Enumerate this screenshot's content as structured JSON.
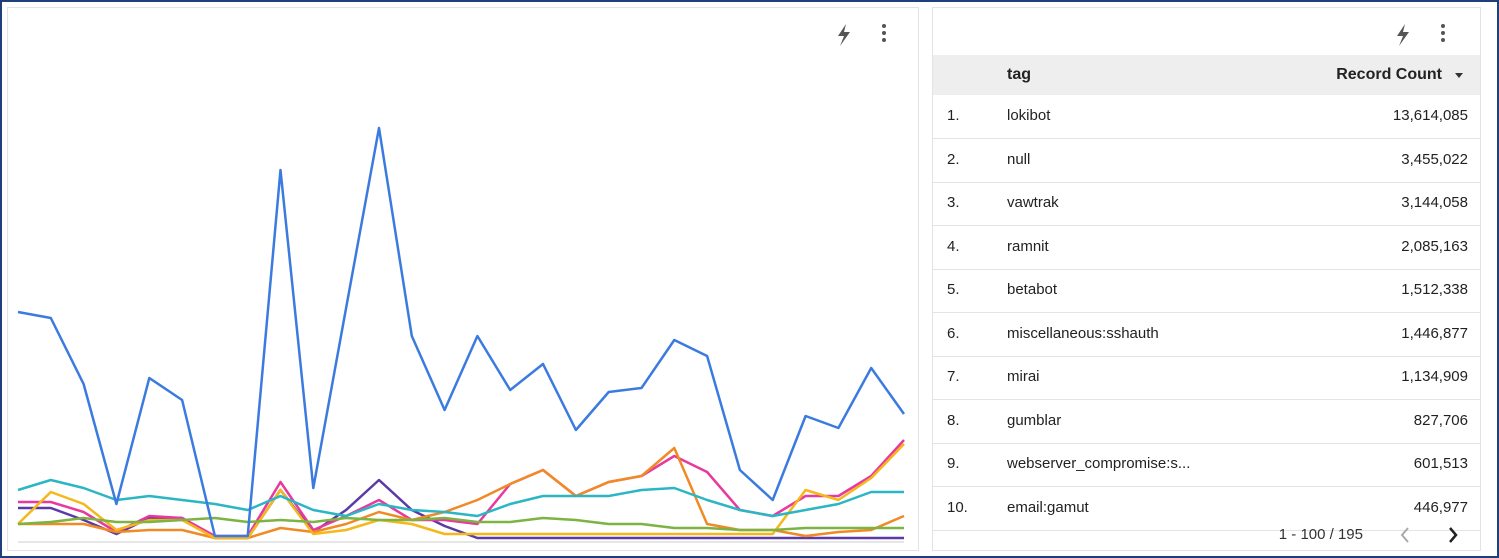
{
  "chart_data": {
    "type": "line",
    "ylim": [
      0,
      110
    ],
    "series": [
      {
        "name": null,
        "color": "#3b7be0",
        "values": [
          57,
          55.5,
          39,
          9,
          40.5,
          35,
          1,
          1,
          92.5,
          13,
          58,
          103,
          51,
          32.5,
          51,
          37.5,
          44,
          27.5,
          37,
          38,
          50,
          46,
          17.5,
          10,
          31,
          28,
          43,
          31.5
        ]
      },
      {
        "name": null,
        "color": "#2bb6c4",
        "values": [
          12.5,
          15,
          13,
          10,
          11,
          10,
          9,
          7.5,
          11,
          7.5,
          6,
          9,
          7.5,
          7,
          6,
          9,
          11,
          11,
          11,
          12.5,
          13,
          10,
          7.5,
          6,
          7.5,
          9,
          12,
          12
        ]
      },
      {
        "name": null,
        "color": "#7cb342",
        "values": [
          4,
          4.5,
          5.5,
          4.5,
          4.5,
          5,
          5.5,
          4.5,
          5,
          4.5,
          5.5,
          5,
          5,
          5.5,
          4.5,
          4.5,
          5.5,
          5,
          4,
          4,
          3,
          3,
          2.5,
          2.5,
          3,
          3,
          3,
          3
        ]
      },
      {
        "name": null,
        "color": "#f5b81b",
        "values": [
          4,
          12,
          9,
          2.5,
          5,
          5,
          0.5,
          0.5,
          12.5,
          1.5,
          2.5,
          5,
          4,
          1.5,
          1.5,
          1.5,
          1.5,
          1.5,
          1.5,
          1.5,
          1.5,
          1.5,
          1.5,
          1.5,
          12.5,
          10,
          15.5,
          24
        ]
      },
      {
        "name": null,
        "color": "#f08a24",
        "values": [
          4,
          4,
          4,
          2,
          2.5,
          2.5,
          0.5,
          0.5,
          3,
          2,
          4,
          7,
          5,
          7,
          10,
          14,
          17.5,
          11,
          14.5,
          16,
          23,
          4,
          2.5,
          2.5,
          1,
          2,
          2.5,
          6
        ]
      },
      {
        "name": null,
        "color": "#e8399e",
        "values": [
          9.5,
          9.5,
          7,
          2,
          6,
          5.5,
          1,
          1,
          14.5,
          2.5,
          6,
          10,
          5,
          5,
          4,
          14,
          17.5,
          11,
          14.5,
          16,
          21,
          17,
          7.5,
          6,
          11,
          11,
          16,
          25
        ]
      },
      {
        "name": null,
        "color": "#5b3aa6",
        "values": [
          8,
          8,
          5,
          1.5,
          5.5,
          5.5,
          0.5,
          0.5,
          12.5,
          2,
          7.5,
          15,
          7.5,
          3.5,
          0.5,
          0.5,
          0.5,
          0.5,
          0.5,
          0.5,
          0.5,
          0.5,
          0.5,
          0.5,
          0.5,
          0.5,
          0.5,
          0.5
        ]
      }
    ]
  },
  "table": {
    "columns": [
      "tag",
      "Record Count"
    ],
    "rows": [
      [
        "1.",
        "lokibot",
        "13,614,085"
      ],
      [
        "2.",
        "null",
        "3,455,022"
      ],
      [
        "3.",
        "vawtrak",
        "3,144,058"
      ],
      [
        "4.",
        "ramnit",
        "2,085,163"
      ],
      [
        "5.",
        "betabot",
        "1,512,338"
      ],
      [
        "6.",
        "miscellaneous:sshauth",
        "1,446,877"
      ],
      [
        "7.",
        "mirai",
        "1,134,909"
      ],
      [
        "8.",
        "gumblar",
        "827,706"
      ],
      [
        "9.",
        "webserver_compromise:s...",
        "601,513"
      ],
      [
        "10.",
        "email:gamut",
        "446,977"
      ]
    ],
    "pagination": "1 - 100 / 195"
  }
}
